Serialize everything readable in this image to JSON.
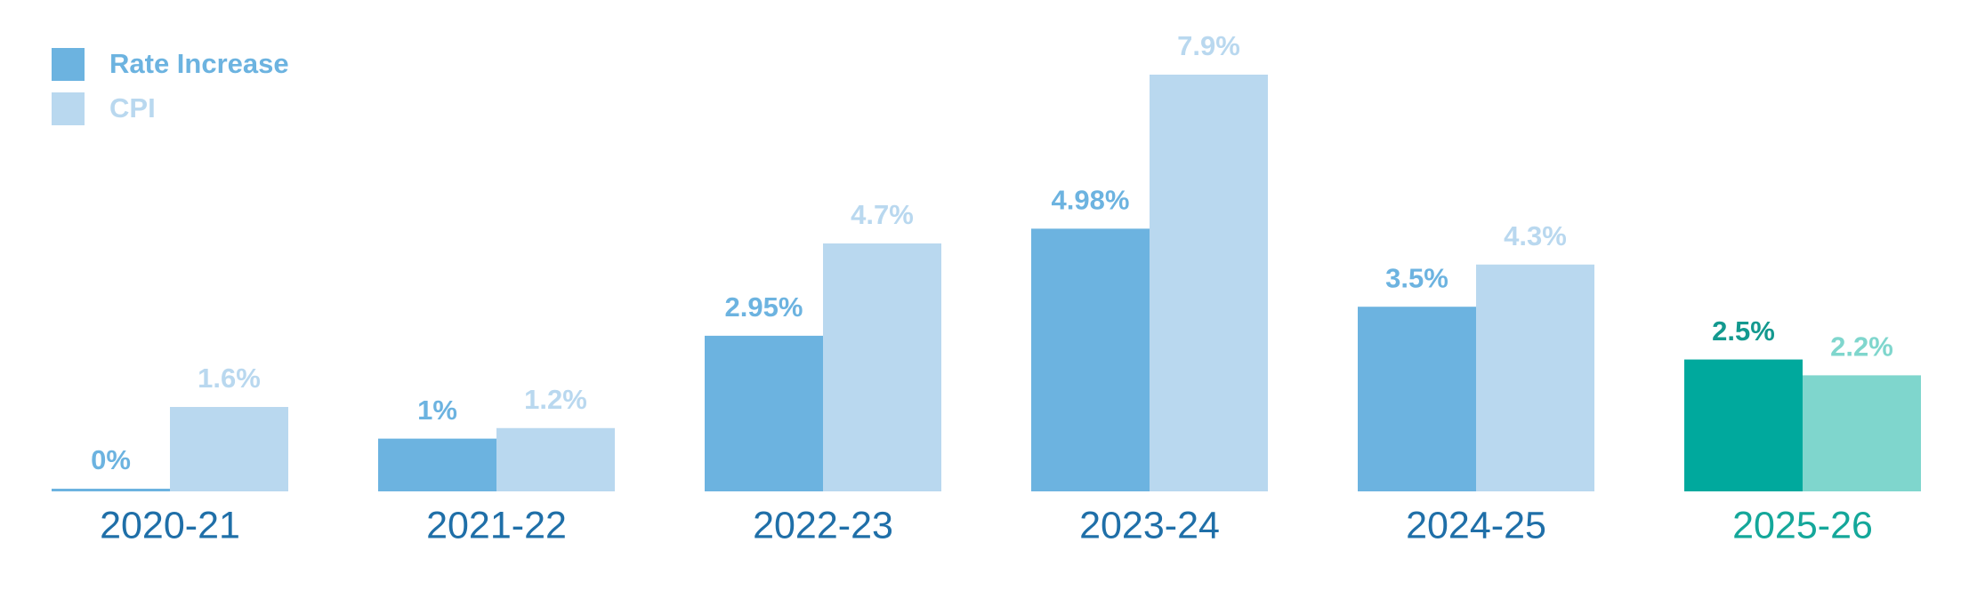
{
  "chart_data": {
    "type": "bar",
    "categories": [
      "2020-21",
      "2021-22",
      "2022-23",
      "2023-24",
      "2024-25",
      "2025-26"
    ],
    "category_colors": [
      "#1f6fa8",
      "#1f6fa8",
      "#1f6fa8",
      "#1f6fa8",
      "#1f6fa8",
      "#14a79a"
    ],
    "legend": "top-left",
    "series": [
      {
        "name": "Rate Increase",
        "color": "#6cb3e0",
        "colors": [
          "#6cb3e0",
          "#6cb3e0",
          "#6cb3e0",
          "#6cb3e0",
          "#6cb3e0",
          "#00a99d"
        ],
        "values": [
          0,
          1,
          2.95,
          4.98,
          3.5,
          2.5
        ],
        "value_labels": [
          "0%",
          "1%",
          "2.95%",
          "4.98%",
          "3.5%",
          "2.5%"
        ]
      },
      {
        "name": "CPI",
        "color": "#b9d8ef",
        "colors": [
          "#b9d8ef",
          "#b9d8ef",
          "#b9d8ef",
          "#b9d8ef",
          "#b9d8ef",
          "#7fd6cd"
        ],
        "values": [
          1.6,
          1.2,
          4.7,
          7.9,
          4.3,
          2.2
        ],
        "value_labels": [
          "1.6%",
          "1.2%",
          "4.7%",
          "7.9%",
          "4.3%",
          "2.2%"
        ]
      }
    ]
  }
}
